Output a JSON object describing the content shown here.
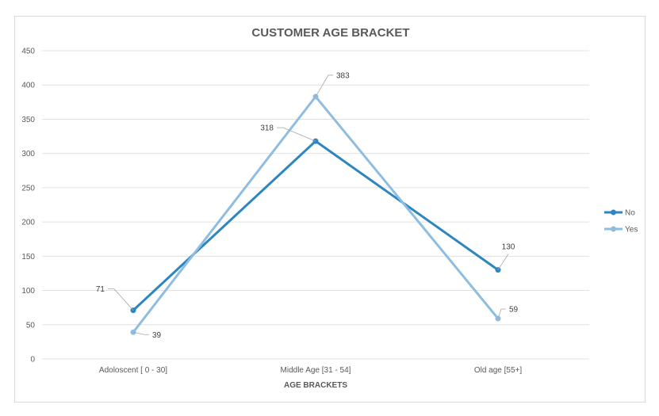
{
  "chart_data": {
    "type": "line",
    "title": "CUSTOMER AGE BRACKET",
    "xlabel": "AGE BRACKETS",
    "ylabel": "",
    "categories": [
      "Adoloscent [ 0 - 30]",
      "Middle Age [31 - 54]",
      "Old age [55+]"
    ],
    "series": [
      {
        "name": "No",
        "values": [
          71,
          318,
          130
        ],
        "color": "#2e86c1"
      },
      {
        "name": "Yes",
        "values": [
          39,
          383,
          59
        ],
        "color": "#8fbde0"
      }
    ],
    "ylim": [
      0,
      450
    ],
    "yticks": [
      0,
      50,
      100,
      150,
      200,
      250,
      300,
      350,
      400,
      450
    ],
    "grid": true,
    "legend_position": "right",
    "colors": {
      "gridline": "#e0e0e0",
      "text": "#595959",
      "leader": "#a6a6a6"
    }
  }
}
